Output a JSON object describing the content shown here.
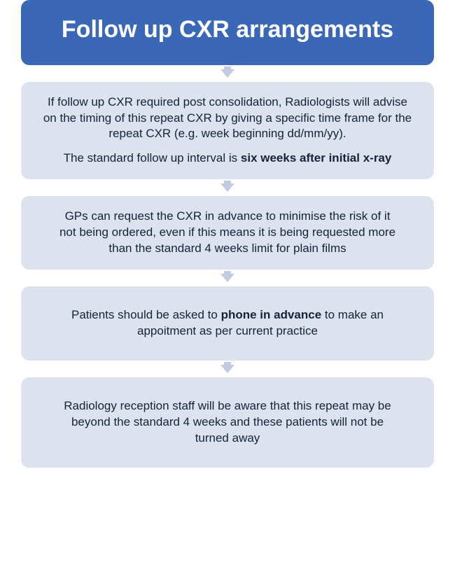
{
  "flow": {
    "type": "flowchart",
    "direction": "vertical",
    "background_color": "#ffffff",
    "header": {
      "text": "Follow up CXR arrangements",
      "bg_color": "#3a68b7",
      "text_color": "#ffffff",
      "font_size": 34,
      "font_weight": 700
    },
    "box_style": {
      "bg_color": "#dde2ef",
      "text_color": "#13233b",
      "border_radius": 12,
      "font_size": 17
    },
    "arrow_style": {
      "color": "#c2cbe0",
      "width": 20,
      "height": 22
    },
    "boxes": [
      {
        "paragraphs": [
          {
            "pre": "If follow up CXR required post consolidation, Radiologists will advise on the timing of this repeat CXR by giving a specific time frame for the repeat CXR (e.g. week beginning dd/mm/yy).",
            "bold": "",
            "post": ""
          },
          {
            "pre": "The standard follow up interval is ",
            "bold": "six weeks after initial x-ray",
            "post": ""
          }
        ]
      },
      {
        "paragraphs": [
          {
            "pre": "GPs can request the CXR in advance to minimise the risk of it not being ordered, even if this means it is being requested more than the standard 4 weeks limit for plain films",
            "bold": "",
            "post": ""
          }
        ]
      },
      {
        "paragraphs": [
          {
            "pre": "Patients should be asked to ",
            "bold": "phone in advance",
            "post": " to make an appoitment as per current practice"
          }
        ]
      },
      {
        "paragraphs": [
          {
            "pre": "Radiology reception staff will be aware that this repeat may be beyond the standard 4 weeks and these patients will not be turned away",
            "bold": "",
            "post": ""
          }
        ]
      }
    ]
  }
}
